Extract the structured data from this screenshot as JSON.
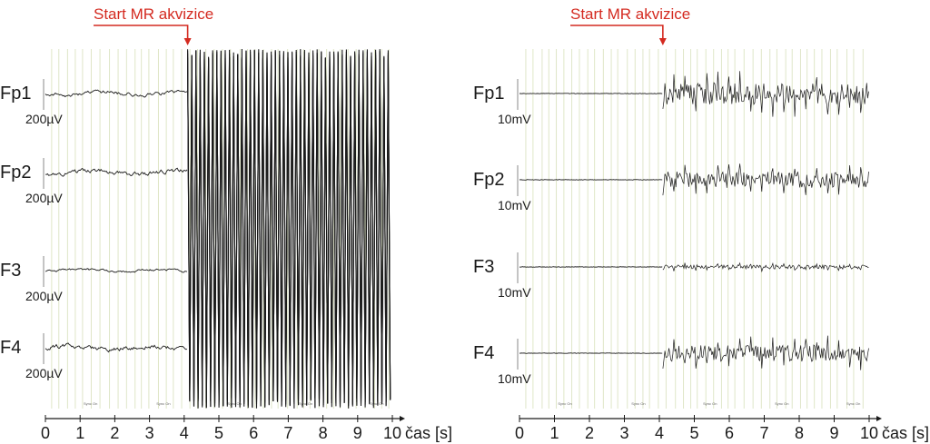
{
  "colors": {
    "annotation": "#d42a20",
    "trace": "#1a1a1a",
    "grid": "#dfe6c8",
    "axis": "#1a1a1a"
  },
  "chart_data": [
    {
      "type": "line",
      "panel": "left",
      "annotation": "Start MR akvizice",
      "annotation_x": 4.1,
      "xlabel": "čas [s]",
      "xlim": [
        0,
        10
      ],
      "xticks": [
        "0",
        "1",
        "2",
        "3",
        "4",
        "5",
        "6",
        "7",
        "8",
        "9",
        "10"
      ],
      "grid": true,
      "series": [
        {
          "name": "Fp1",
          "scale": "200µV",
          "pre_amplitude": 0.25,
          "post_amplitude": 3.0
        },
        {
          "name": "Fp2",
          "scale": "200µV",
          "pre_amplitude": 0.3,
          "post_amplitude": 3.0
        },
        {
          "name": "F3",
          "scale": "200µV",
          "pre_amplitude": 0.15,
          "post_amplitude": 3.0
        },
        {
          "name": "F4",
          "scale": "200µV",
          "pre_amplitude": 0.3,
          "post_amplitude": 3.0
        }
      ],
      "markers": [
        {
          "label": "Sync On",
          "x": 1.3
        },
        {
          "label": "Sync On",
          "x": 3.4
        },
        {
          "label": "Sync On",
          "x": 5.45
        },
        {
          "label": "Sync On",
          "x": 7.5
        },
        {
          "label": "Sync On",
          "x": 9.55
        }
      ]
    },
    {
      "type": "line",
      "panel": "right",
      "annotation": "Start MR akvizice",
      "annotation_x": 4.1,
      "xlabel": "čas [s]",
      "xlim": [
        0,
        10
      ],
      "xticks": [
        "0",
        "1",
        "2",
        "3",
        "4",
        "5",
        "6",
        "7",
        "8",
        "9",
        "10"
      ],
      "grid": true,
      "series": [
        {
          "name": "Fp1",
          "scale": "10mV",
          "pre_amplitude": 0.0,
          "post_amplitude": 0.8
        },
        {
          "name": "Fp2",
          "scale": "10mV",
          "pre_amplitude": 0.0,
          "post_amplitude": 0.6
        },
        {
          "name": "F3",
          "scale": "10mV",
          "pre_amplitude": 0.0,
          "post_amplitude": 0.15
        },
        {
          "name": "F4",
          "scale": "10mV",
          "pre_amplitude": 0.0,
          "post_amplitude": 0.6
        }
      ],
      "markers": [
        {
          "label": "Sync On",
          "x": 1.3
        },
        {
          "label": "Sync On",
          "x": 3.4
        },
        {
          "label": "Sync On",
          "x": 5.45
        },
        {
          "label": "Sync On",
          "x": 7.5
        },
        {
          "label": "Sync On",
          "x": 9.55
        }
      ]
    }
  ]
}
